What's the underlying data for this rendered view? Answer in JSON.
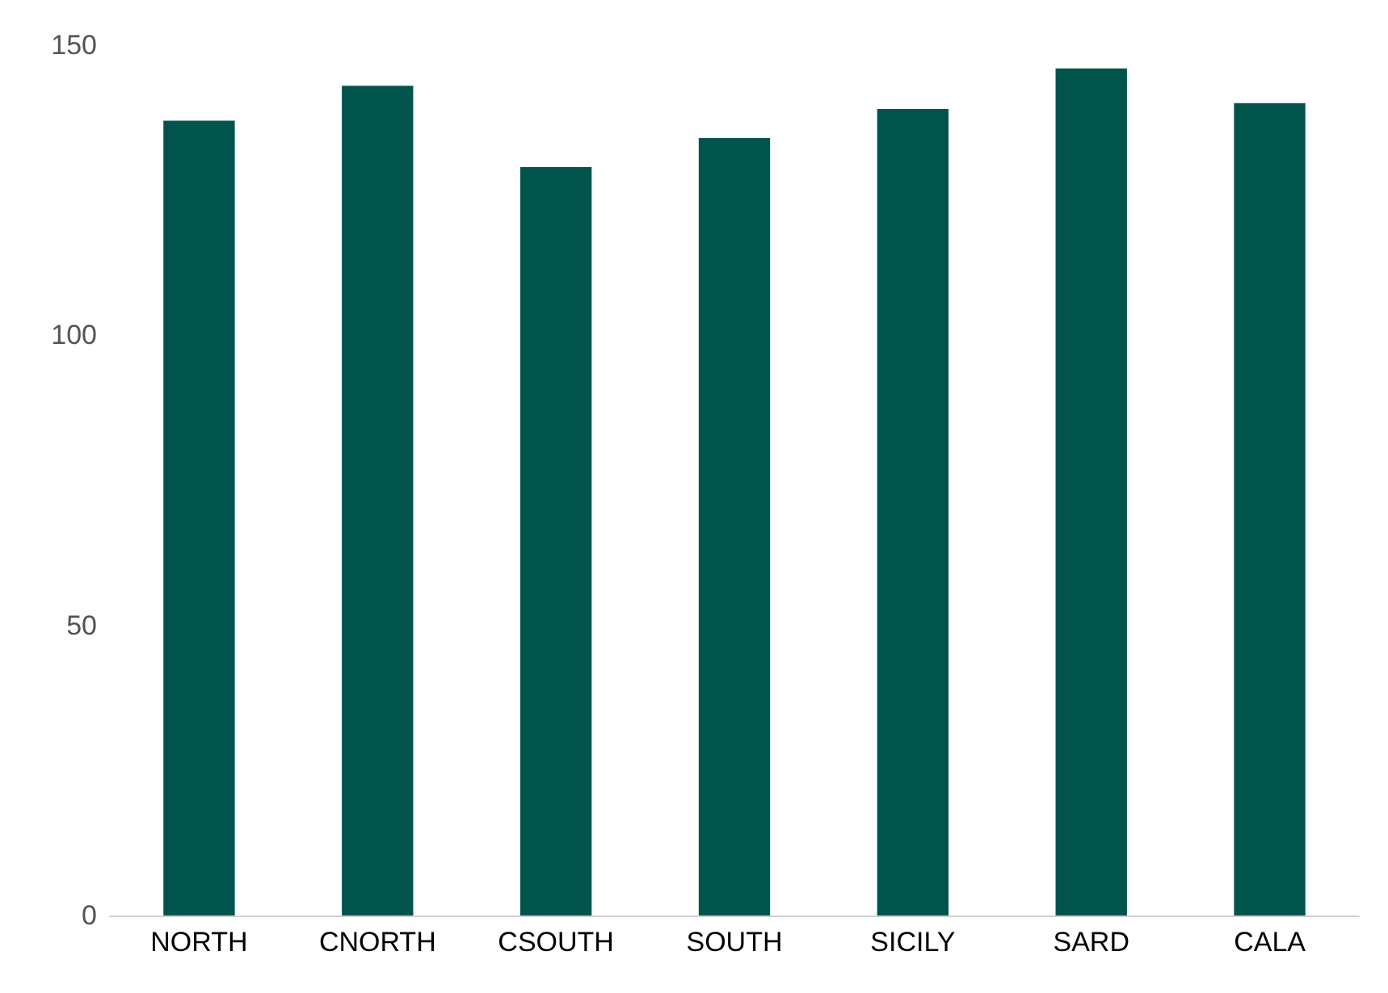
{
  "chart_data": {
    "type": "bar",
    "categories": [
      "NORTH",
      "CNORTH",
      "CSOUTH",
      "SOUTH",
      "SICILY",
      "SARD",
      "CALA"
    ],
    "values": [
      137,
      143,
      129,
      134,
      139,
      146,
      140
    ],
    "color": "#00544c",
    "ylim": [
      0,
      150
    ],
    "yticks": [
      0,
      50,
      100,
      150
    ],
    "grid": false
  }
}
